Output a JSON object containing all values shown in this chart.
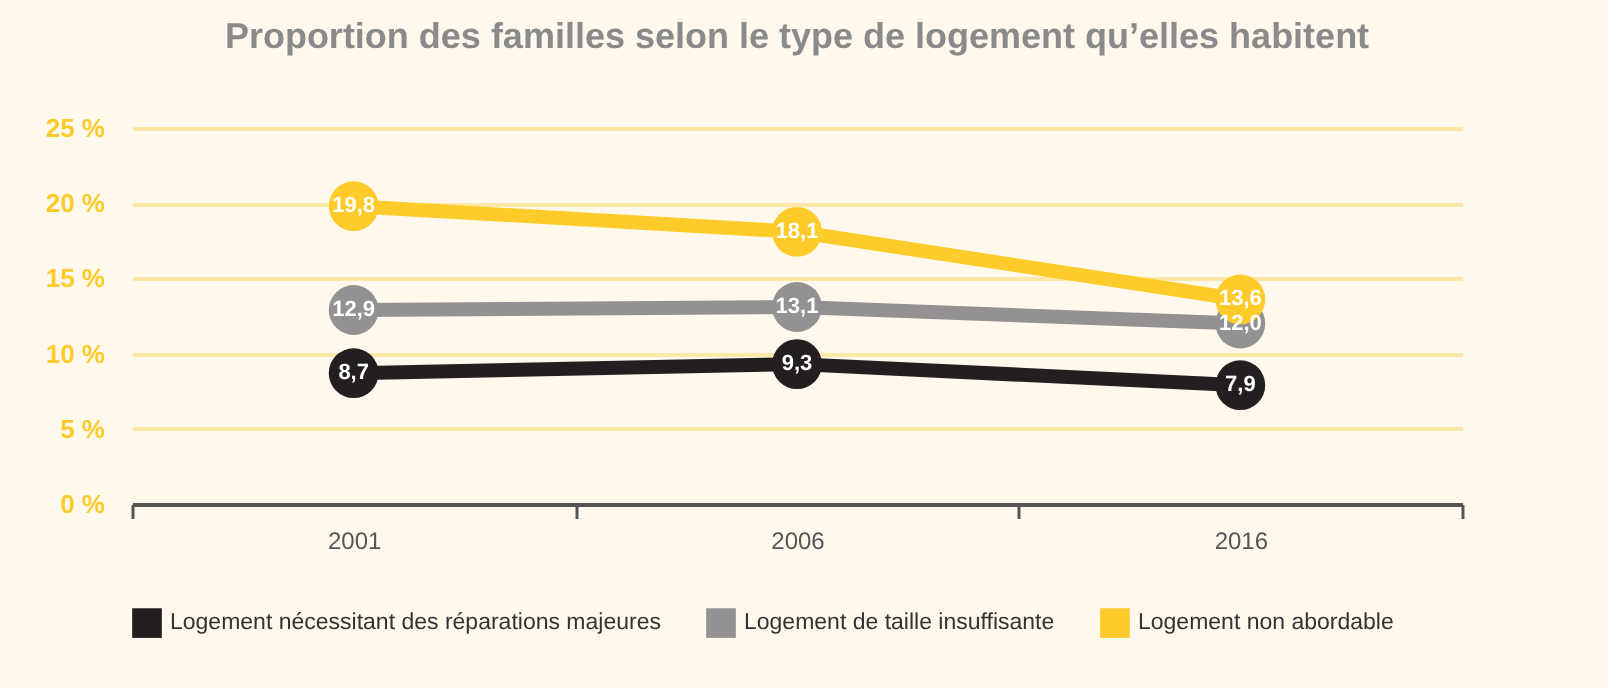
{
  "chart_data": {
    "type": "line",
    "title": "Proportion des familles selon le type de logement qu’elles habitent",
    "categories": [
      "2001",
      "2006",
      "2016"
    ],
    "series": [
      {
        "name": "Logement nécessitant des réparations majeures",
        "color": "#231f20",
        "values": [
          8.7,
          9.3,
          7.9
        ],
        "value_labels": [
          "8,7",
          "9,3",
          "7,9"
        ]
      },
      {
        "name": "Logement de taille insuffisante",
        "color": "#939191",
        "values": [
          12.9,
          13.1,
          12.0
        ],
        "value_labels": [
          "12,9",
          "13,1",
          "12,0"
        ]
      },
      {
        "name": "Logement non abordable",
        "color": "#ffcb2b",
        "values": [
          19.8,
          18.1,
          13.6
        ],
        "value_labels": [
          "19,8",
          "18,1",
          "13,6"
        ]
      }
    ],
    "ylim": [
      0,
      25
    ],
    "yticks": [
      {
        "value": 0,
        "label": "0 %"
      },
      {
        "value": 5,
        "label": "5 %"
      },
      {
        "value": 10,
        "label": "10 %"
      },
      {
        "value": 15,
        "label": "15 %"
      },
      {
        "value": 20,
        "label": "20 %"
      },
      {
        "value": 25,
        "label": "25 %"
      }
    ],
    "grid": "y",
    "legend": "bottom",
    "marker": "circle",
    "line_style": "solid"
  }
}
